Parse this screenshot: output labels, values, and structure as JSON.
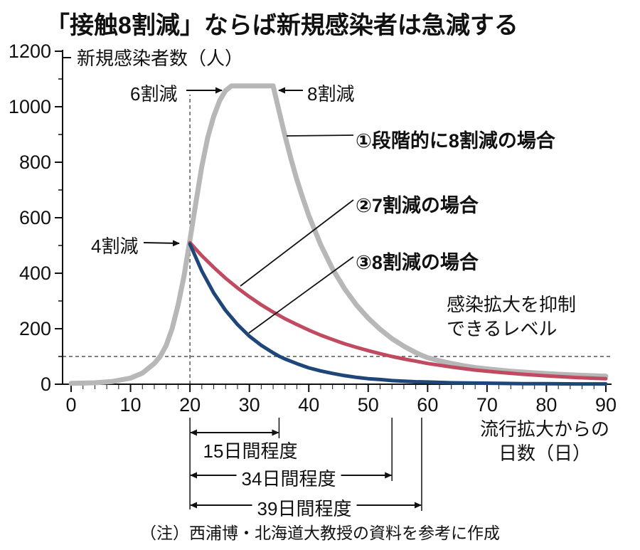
{
  "title": "「接触8割減」ならば新規感染者は急減する",
  "note": "（注）西浦博・北海道大教授の資料を参考に作成",
  "chart_data": {
    "type": "line",
    "title": "「接触8割減」ならば新規感染者は急減する",
    "ylabel": "新規感染者数（人）",
    "xlabel": "流行拡大からの日数（日）",
    "xlabel_line1": "流行拡大からの",
    "xlabel_line2": "日数（日）",
    "xlim": [
      0,
      90
    ],
    "ylim": [
      0,
      1200
    ],
    "x_ticks": [
      0,
      10,
      20,
      30,
      40,
      50,
      60,
      70,
      80,
      90
    ],
    "y_ticks": [
      0,
      200,
      400,
      600,
      800,
      1000,
      1200
    ],
    "x_minor_step": 2,
    "y_minor_step": 100,
    "grid": false,
    "legend_position": "inline-right",
    "threshold": {
      "value": 100,
      "label_line1": "感染拡大を抑制",
      "label_line2": "できるレベル"
    },
    "peak_vline_day": 20,
    "annotations": {
      "reduction40": "4割減",
      "reduction60": "6割減",
      "reduction80": "8割減"
    },
    "series": [
      {
        "name": "①段階的に8割減の場合",
        "color": "#b7b7b7",
        "width": 7,
        "points": [
          [
            0,
            3
          ],
          [
            4,
            5
          ],
          [
            7,
            10
          ],
          [
            10,
            22
          ],
          [
            12,
            40
          ],
          [
            14,
            75
          ],
          [
            15,
            100
          ],
          [
            16,
            140
          ],
          [
            17,
            200
          ],
          [
            18,
            285
          ],
          [
            19,
            390
          ],
          [
            20,
            520
          ],
          [
            21,
            655
          ],
          [
            22,
            785
          ],
          [
            23,
            890
          ],
          [
            24,
            965
          ],
          [
            25,
            1022
          ],
          [
            26,
            1058
          ],
          [
            27,
            1075
          ],
          [
            34,
            1075
          ],
          [
            35,
            985
          ],
          [
            36,
            895
          ],
          [
            37,
            812
          ],
          [
            38,
            737
          ],
          [
            39,
            670
          ],
          [
            40,
            608
          ],
          [
            42,
            503
          ],
          [
            44,
            416
          ],
          [
            46,
            345
          ],
          [
            48,
            286
          ],
          [
            50,
            238
          ],
          [
            52,
            198
          ],
          [
            54,
            164
          ],
          [
            56,
            137
          ],
          [
            58,
            114
          ],
          [
            59,
            104
          ],
          [
            60,
            96
          ],
          [
            62,
            84
          ],
          [
            64,
            75
          ],
          [
            66,
            67
          ],
          [
            68,
            60
          ],
          [
            70,
            55
          ],
          [
            74,
            47
          ],
          [
            78,
            41
          ],
          [
            82,
            36
          ],
          [
            86,
            32
          ],
          [
            90,
            29
          ]
        ]
      },
      {
        "name": "②7割減の場合",
        "color": "#c04a60",
        "width": 5,
        "points": [
          [
            20,
            510
          ],
          [
            22,
            463
          ],
          [
            24,
            421
          ],
          [
            26,
            382
          ],
          [
            28,
            347
          ],
          [
            30,
            315
          ],
          [
            32,
            286
          ],
          [
            34,
            260
          ],
          [
            36,
            236
          ],
          [
            38,
            215
          ],
          [
            40,
            195
          ],
          [
            42,
            177
          ],
          [
            44,
            161
          ],
          [
            46,
            146
          ],
          [
            48,
            133
          ],
          [
            50,
            121
          ],
          [
            52,
            110
          ],
          [
            54,
            100
          ],
          [
            56,
            91
          ],
          [
            58,
            83
          ],
          [
            60,
            75
          ],
          [
            64,
            62
          ],
          [
            68,
            51
          ],
          [
            72,
            43
          ],
          [
            76,
            36
          ],
          [
            80,
            30
          ],
          [
            85,
            24
          ],
          [
            90,
            20
          ]
        ]
      },
      {
        "name": "③8割減の場合",
        "color": "#1e4678",
        "width": 5,
        "points": [
          [
            20,
            505
          ],
          [
            22,
            408
          ],
          [
            24,
            329
          ],
          [
            26,
            266
          ],
          [
            28,
            215
          ],
          [
            30,
            173
          ],
          [
            32,
            140
          ],
          [
            34,
            113
          ],
          [
            35,
            101
          ],
          [
            36,
            91
          ],
          [
            38,
            74
          ],
          [
            40,
            59
          ],
          [
            42,
            48
          ],
          [
            44,
            39
          ],
          [
            46,
            31
          ],
          [
            48,
            25
          ],
          [
            50,
            20
          ],
          [
            52,
            17
          ],
          [
            54,
            13
          ],
          [
            56,
            11
          ],
          [
            58,
            9
          ],
          [
            60,
            8
          ],
          [
            64,
            5
          ],
          [
            68,
            4
          ],
          [
            72,
            3
          ],
          [
            76,
            2
          ],
          [
            80,
            2
          ],
          [
            85,
            1
          ],
          [
            90,
            1
          ]
        ]
      }
    ],
    "duration_brackets": [
      {
        "label": "15日間程度",
        "from_day": 20,
        "to_day": 35
      },
      {
        "label": "34日間程度",
        "from_day": 20,
        "to_day": 54
      },
      {
        "label": "39日間程度",
        "from_day": 20,
        "to_day": 59
      }
    ]
  }
}
